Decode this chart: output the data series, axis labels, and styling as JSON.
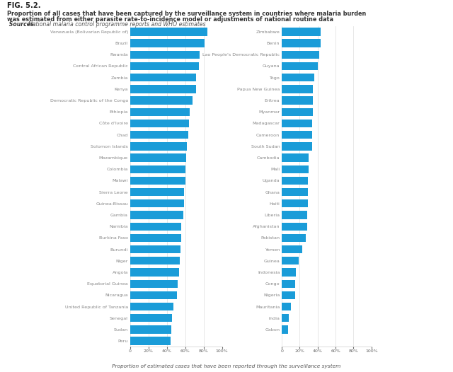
{
  "fig_label": "FIG. 5.2.",
  "title_line1": "Proportion of all cases that have been captured by the surveillance system in countries where malaria burden",
  "title_line2": "was estimated from either parasite rate-to-incidence model or adjustments of national routine data",
  "title_sources_bold": " Sources:",
  "title_sources_italic": "National malaria control programme reports and WHO estimates",
  "xlabel": "Proportion of estimated cases that have been reported through the surveillance system",
  "bar_color": "#1a9cd8",
  "left_countries": [
    "Venezuela (Bolivarian Republic of)",
    "Brazil",
    "Rwanda",
    "Central African Republic",
    "Zambia",
    "Kenya",
    "Democratic Republic of the Congo",
    "Ethiopia",
    "Côte d'Ivoire",
    "Chad",
    "Solomon Islands",
    "Mozambique",
    "Colombia",
    "Malawi",
    "Sierra Leone",
    "Guinea-Bissau",
    "Gambia",
    "Namibia",
    "Burkina Faso",
    "Burundi",
    "Niger",
    "Angola",
    "Equatorial Guinea",
    "Nicaragua",
    "United Republic of Tanzania",
    "Senegal",
    "Sudan",
    "Peru"
  ],
  "left_values": [
    84,
    81,
    76,
    75,
    72,
    72,
    68,
    65,
    64,
    63,
    62,
    61,
    60,
    60,
    59,
    59,
    58,
    56,
    56,
    55,
    54,
    53,
    52,
    51,
    47,
    46,
    45,
    44
  ],
  "right_countries": [
    "Zimbabwe",
    "Benin",
    "Lao People's Democratic Republic",
    "Guyana",
    "Togo",
    "Papua New Guinea",
    "Eritrea",
    "Myanmar",
    "Madagascar",
    "Cameroon",
    "South Sudan",
    "Cambodia",
    "Mali",
    "Uganda",
    "Ghana",
    "Haiti",
    "Liberia",
    "Afghanistan",
    "Pakistan",
    "Yemen",
    "Guinea",
    "Indonesia",
    "Congo",
    "Nigeria",
    "Mauritania",
    "India",
    "Gabon"
  ],
  "right_values": [
    43,
    43,
    42,
    40,
    36,
    35,
    35,
    35,
    34,
    34,
    34,
    30,
    30,
    29,
    29,
    29,
    28,
    28,
    27,
    23,
    19,
    16,
    15,
    15,
    10,
    8,
    7
  ],
  "background_color": "#ffffff",
  "grid_color": "#dddddd",
  "label_color": "#888888",
  "tick_label_color": "#666666",
  "fig_label_color": "#222222",
  "title_color": "#333333",
  "sources_color": "#555555"
}
